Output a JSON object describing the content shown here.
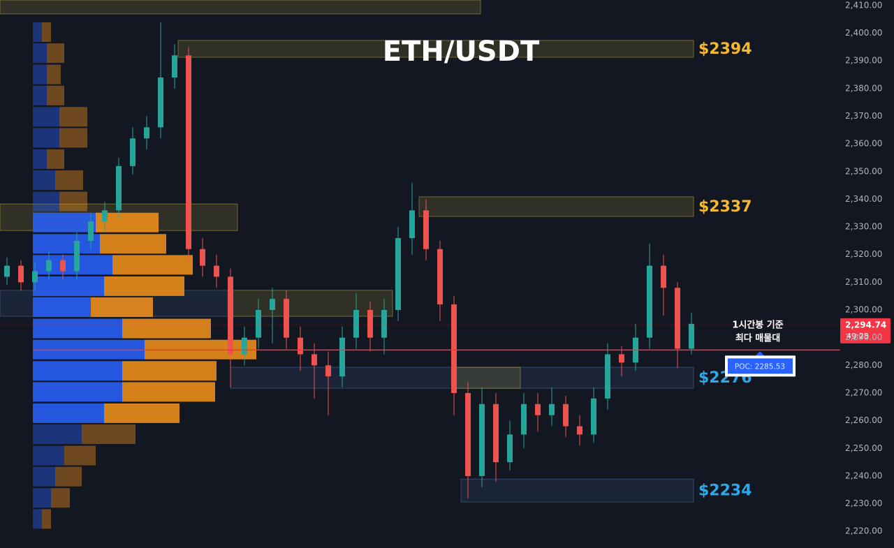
{
  "chart_data": {
    "type": "candlestick",
    "title": "ETH/USDT",
    "ylim": [
      2214,
      2412
    ],
    "yticks": [
      {
        "value": 2220,
        "label": "2,220.00"
      },
      {
        "value": 2230,
        "label": "2,230.00"
      },
      {
        "value": 2240,
        "label": "2,240.00"
      },
      {
        "value": 2250,
        "label": "2,250.00"
      },
      {
        "value": 2260,
        "label": "2,260.00"
      },
      {
        "value": 2270,
        "label": "2,270.00"
      },
      {
        "value": 2280,
        "label": "2,280.00"
      },
      {
        "value": 2290,
        "label": "2,290.00"
      },
      {
        "value": 2300,
        "label": "2,300.00"
      },
      {
        "value": 2310,
        "label": "2,310.00"
      },
      {
        "value": 2320,
        "label": "2,320.00"
      },
      {
        "value": 2330,
        "label": "2,330.00"
      },
      {
        "value": 2340,
        "label": "2,340.00"
      },
      {
        "value": 2350,
        "label": "2,350.00"
      },
      {
        "value": 2360,
        "label": "2,360.00"
      },
      {
        "value": 2370,
        "label": "2,370.00"
      },
      {
        "value": 2380,
        "label": "2,380.00"
      },
      {
        "value": 2390,
        "label": "2,390.00"
      },
      {
        "value": 2400,
        "label": "2,400.00"
      },
      {
        "value": 2410,
        "label": "2,410.00"
      }
    ],
    "up_color": "#26a69a",
    "down_color": "#ef5350",
    "candles": [
      [
        2312,
        2319,
        2309,
        2316
      ],
      [
        2316,
        2318,
        2307,
        2310
      ],
      [
        2310,
        2317,
        2307,
        2314
      ],
      [
        2314,
        2321,
        2311,
        2318
      ],
      [
        2318,
        2320,
        2311,
        2314
      ],
      [
        2314,
        2328,
        2311,
        2325
      ],
      [
        2325,
        2335,
        2322,
        2332
      ],
      [
        2332,
        2339,
        2328,
        2336
      ],
      [
        2336,
        2355,
        2333,
        2352
      ],
      [
        2352,
        2366,
        2349,
        2362
      ],
      [
        2362,
        2370,
        2358,
        2366
      ],
      [
        2366,
        2404,
        2362,
        2384
      ],
      [
        2384,
        2396,
        2380,
        2392
      ],
      [
        2392,
        2395,
        2318,
        2322
      ],
      [
        2322,
        2326,
        2312,
        2316
      ],
      [
        2316,
        2320,
        2308,
        2312
      ],
      [
        2312,
        2315,
        2272,
        2284
      ],
      [
        2284,
        2294,
        2280,
        2290
      ],
      [
        2290,
        2304,
        2286,
        2300
      ],
      [
        2300,
        2308,
        2288,
        2304
      ],
      [
        2304,
        2307,
        2286,
        2290
      ],
      [
        2290,
        2294,
        2278,
        2284
      ],
      [
        2284,
        2288,
        2268,
        2280
      ],
      [
        2280,
        2285,
        2262,
        2276
      ],
      [
        2276,
        2294,
        2272,
        2290
      ],
      [
        2290,
        2306,
        2286,
        2300
      ],
      [
        2300,
        2303,
        2285,
        2290
      ],
      [
        2290,
        2304,
        2284,
        2300
      ],
      [
        2300,
        2330,
        2296,
        2326
      ],
      [
        2326,
        2346,
        2320,
        2336
      ],
      [
        2336,
        2340,
        2318,
        2322
      ],
      [
        2322,
        2325,
        2296,
        2302
      ],
      [
        2302,
        2305,
        2262,
        2270
      ],
      [
        2270,
        2274,
        2232,
        2240
      ],
      [
        2240,
        2272,
        2236,
        2266
      ],
      [
        2266,
        2270,
        2238,
        2245
      ],
      [
        2245,
        2260,
        2242,
        2255
      ],
      [
        2255,
        2270,
        2250,
        2266
      ],
      [
        2266,
        2270,
        2256,
        2262
      ],
      [
        2262,
        2272,
        2258,
        2266
      ],
      [
        2266,
        2269,
        2254,
        2258
      ],
      [
        2258,
        2262,
        2251,
        2255
      ],
      [
        2255,
        2272,
        2252,
        2268
      ],
      [
        2268,
        2288,
        2264,
        2284
      ],
      [
        2284,
        2287,
        2276,
        2281
      ],
      [
        2281,
        2295,
        2278,
        2290
      ],
      [
        2290,
        2324,
        2286,
        2316
      ],
      [
        2316,
        2320,
        2298,
        2308
      ],
      [
        2308,
        2310,
        2279,
        2286
      ],
      [
        2286,
        2299,
        2284,
        2295
      ]
    ],
    "volume_profile": {
      "buy_color": "#2962ff",
      "sell_color": "#f7931a",
      "value_area": [
        2260,
        2336
      ],
      "rows": [
        {
          "price": 2400.4,
          "buy": 13,
          "sell": 13
        },
        {
          "price": 2392.8,
          "buy": 20,
          "sell": 25
        },
        {
          "price": 2385.1,
          "buy": 20,
          "sell": 20
        },
        {
          "price": 2377.5,
          "buy": 20,
          "sell": 25
        },
        {
          "price": 2369.8,
          "buy": 38,
          "sell": 40
        },
        {
          "price": 2362.2,
          "buy": 38,
          "sell": 40
        },
        {
          "price": 2354.5,
          "buy": 20,
          "sell": 25
        },
        {
          "price": 2346.9,
          "buy": 32,
          "sell": 40
        },
        {
          "price": 2339.2,
          "buy": 38,
          "sell": 40
        },
        {
          "price": 2331.6,
          "buy": 90,
          "sell": 90
        },
        {
          "price": 2323.9,
          "buy": 96,
          "sell": 95
        },
        {
          "price": 2316.3,
          "buy": 114,
          "sell": 115
        },
        {
          "price": 2308.6,
          "buy": 102,
          "sell": 115
        },
        {
          "price": 2301.0,
          "buy": 83,
          "sell": 89
        },
        {
          "price": 2293.3,
          "buy": 128,
          "sell": 127
        },
        {
          "price": 2285.7,
          "buy": 160,
          "sell": 160
        },
        {
          "price": 2278.0,
          "buy": 128,
          "sell": 135
        },
        {
          "price": 2270.4,
          "buy": 128,
          "sell": 133
        },
        {
          "price": 2262.7,
          "buy": 102,
          "sell": 108
        },
        {
          "price": 2255.1,
          "buy": 70,
          "sell": 77
        },
        {
          "price": 2247.4,
          "buy": 45,
          "sell": 45
        },
        {
          "price": 2239.8,
          "buy": 32,
          "sell": 38
        },
        {
          "price": 2232.1,
          "buy": 26,
          "sell": 27
        },
        {
          "price": 2224.5,
          "buy": 13,
          "sell": 13
        }
      ]
    },
    "zones": [
      {
        "low": 2407,
        "high": 2412,
        "from": -0.5,
        "to": 33.9,
        "color": "#b5a642"
      },
      {
        "low": 2391.3,
        "high": 2397.4,
        "from": 12.25,
        "to": 49.15,
        "color": "#b5a642",
        "label": "$2394",
        "label_color": "#f5b82e"
      },
      {
        "low": 2328.7,
        "high": 2338.3,
        "from": -0.5,
        "to": 16.5,
        "color": "#b5a642"
      },
      {
        "low": 2333.8,
        "high": 2340.9,
        "from": 29.5,
        "to": 49.15,
        "color": "#b5a642",
        "label": "$2337",
        "label_color": "#f5b82e"
      },
      {
        "low": 2297.7,
        "high": 2307.1,
        "from": -0.5,
        "to": 16,
        "color": "#4a6a9a"
      },
      {
        "low": 2297.7,
        "high": 2307.1,
        "from": 16,
        "to": 27.6,
        "color": "#b5a642"
      },
      {
        "low": 2271.7,
        "high": 2279.3,
        "from": 16,
        "to": 49.15,
        "color": "#4a6a9a",
        "label": "$2276",
        "label_color": "#2ea8e8"
      },
      {
        "low": 2271.7,
        "high": 2279.3,
        "from": 32,
        "to": 36.75,
        "color": "#b5a642"
      },
      {
        "low": 2230.6,
        "high": 2238.9,
        "from": 32.5,
        "to": 49.15,
        "color": "#4a6a9a",
        "label": "$2234",
        "label_color": "#2ea8e8"
      }
    ],
    "poc": {
      "value": 2285.53,
      "label": "POC: 2285.53",
      "color": "#f23645"
    },
    "last_price": {
      "value": 2294.74,
      "label": "2,294.74",
      "countdown": "49:28"
    },
    "annotation": [
      "1시간봉 기준",
      "최다 매물대"
    ]
  }
}
